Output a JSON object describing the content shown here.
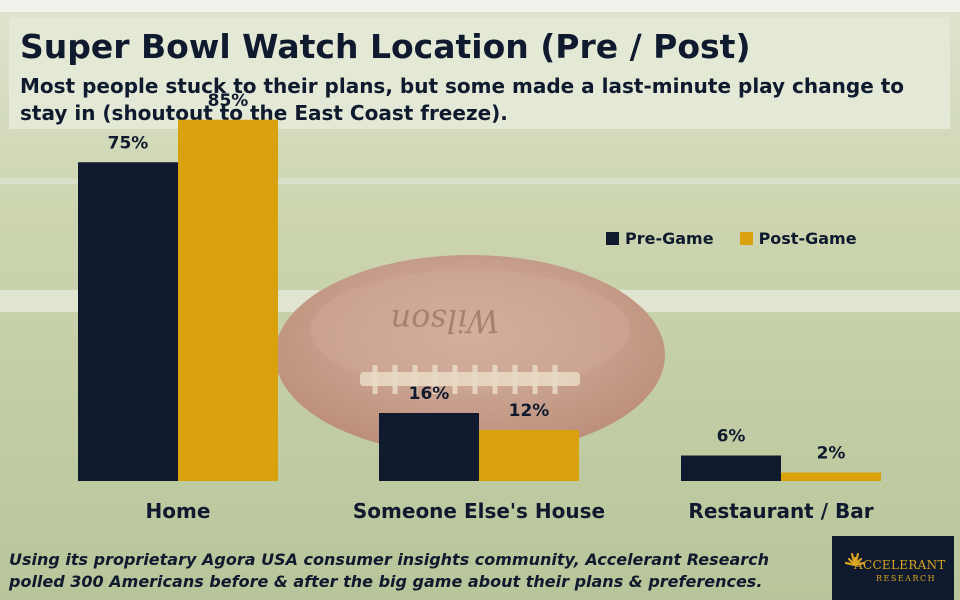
{
  "header": {
    "title": "Super Bowl Watch Location (Pre / Post)",
    "subtitle": "Most people stuck to their plans, but some made a last-minute play change to stay in (shoutout to the East Coast freeze)."
  },
  "chart_data": {
    "type": "bar",
    "categories": [
      "Home",
      "Someone Else's House",
      "Restaurant / Bar"
    ],
    "series": [
      {
        "name": "Pre-Game",
        "values": [
          75,
          16,
          6
        ],
        "labels": [
          "75%",
          "16%",
          "6%"
        ],
        "color": "#0f1a2e"
      },
      {
        "name": "Post-Game",
        "values": [
          85,
          12,
          2
        ],
        "labels": [
          "85%",
          "12%",
          "2%"
        ],
        "color": "#d9a20d"
      }
    ],
    "title": "Super Bowl Watch Location (Pre / Post)",
    "ylim": [
      0,
      100
    ],
    "grid": false,
    "legend": "right"
  },
  "footnote": "Using its proprietary Agora USA consumer insights community, Accelerant Research polled 300 Americans before & after the big game about their plans & preferences.",
  "logo": {
    "name": "ACCELERANT",
    "sub": "RESEARCH",
    "color": "#d9a520"
  },
  "background": {
    "icon": "football-on-field-image",
    "field": "#b7c49a",
    "ball": "#c9a08d"
  }
}
